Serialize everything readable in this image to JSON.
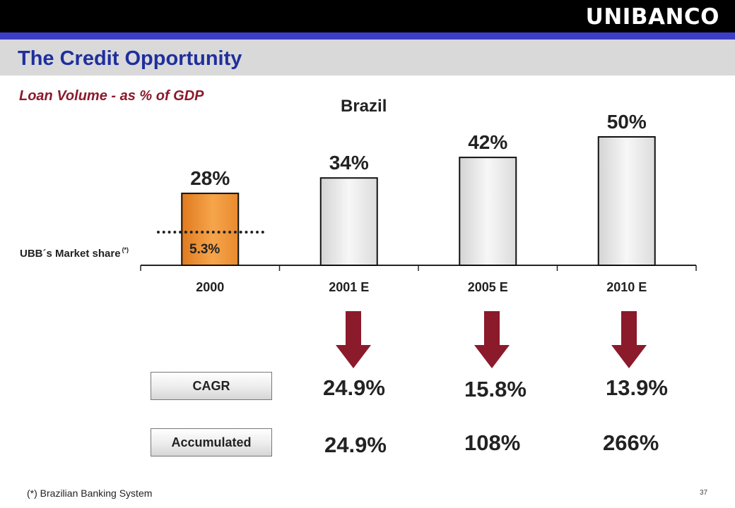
{
  "header": {
    "logo": "UNIBANCO",
    "title": "The Credit Opportunity"
  },
  "subtitle": "Loan Volume - as % of GDP",
  "chart_data": {
    "type": "bar",
    "title": "Brazil",
    "categories": [
      "2000",
      "2001 E",
      "2005 E",
      "2010 E"
    ],
    "values": [
      28,
      34,
      42,
      50
    ],
    "value_labels": [
      "28%",
      "34%",
      "42%",
      "50%"
    ],
    "ylim": [
      0,
      50
    ],
    "grid": false,
    "bar_colors": [
      "#f39a3a",
      "#e8e8e8",
      "#e8e8e8",
      "#e8e8e8"
    ],
    "market_share": {
      "label": "UBB´s Market share",
      "note": "(*)",
      "value_label": "5.3%",
      "value": 5.3
    }
  },
  "metrics": {
    "cagr_label": "CAGR",
    "accumulated_label": "Accumulated",
    "cagr_values": [
      "24.9%",
      "15.8%",
      "13.9%"
    ],
    "accumulated_values": [
      "24.9%",
      "108%",
      "266%"
    ]
  },
  "colors": {
    "accent_dark_red": "#8b1a2b",
    "title_blue": "#1f2f9e",
    "stripe_blue": "#3d3dc9"
  },
  "footnote": "(*) Brazilian Banking System",
  "page_number": "37"
}
